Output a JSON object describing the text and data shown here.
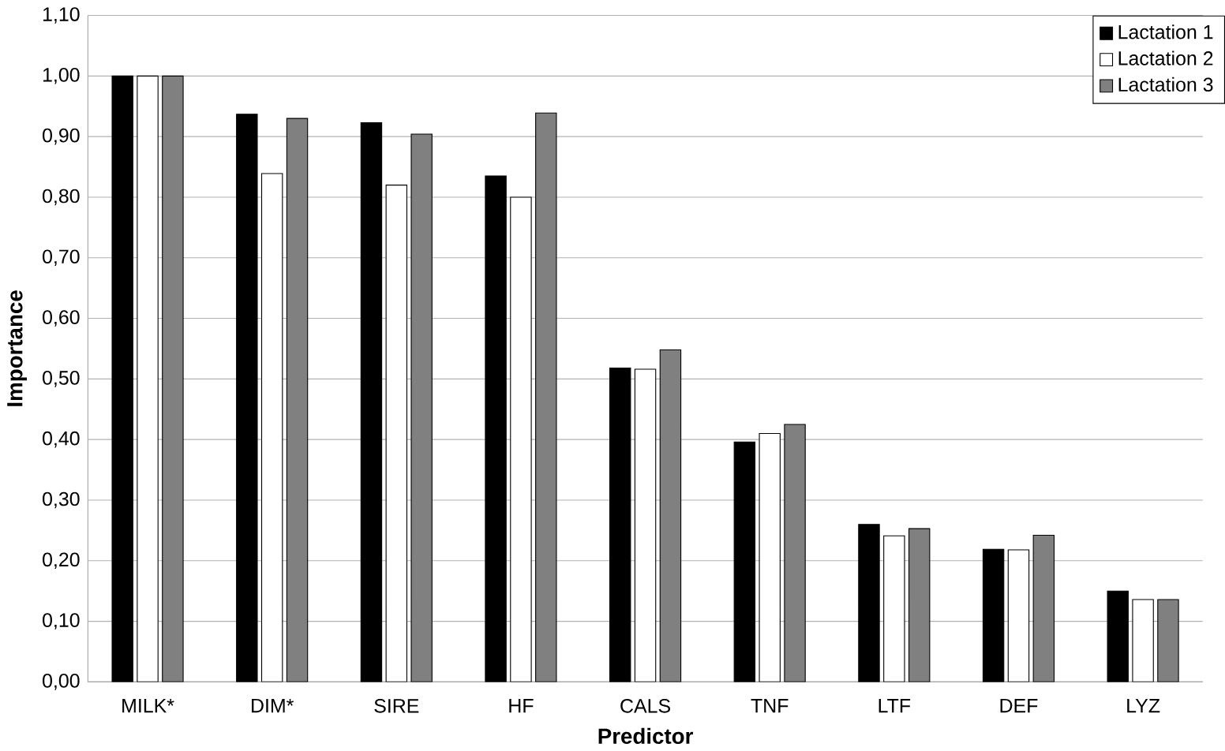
{
  "chart_data": {
    "type": "bar",
    "xlabel": "Predictor",
    "ylabel": "Importance",
    "categories": [
      "MILK*",
      "DIM*",
      "SIRE",
      "HF",
      "CALS",
      "TNF",
      "LTF",
      "DEF",
      "LYZ"
    ],
    "series": [
      {
        "name": "Lactation 1",
        "color": "#000000",
        "values": [
          1.0,
          0.937,
          0.923,
          0.835,
          0.518,
          0.396,
          0.26,
          0.219,
          0.15
        ]
      },
      {
        "name": "Lactation 2",
        "color": "#ffffff",
        "values": [
          1.0,
          0.839,
          0.82,
          0.8,
          0.516,
          0.41,
          0.241,
          0.218,
          0.136
        ]
      },
      {
        "name": "Lactation 3",
        "color": "#808080",
        "values": [
          1.0,
          0.93,
          0.904,
          0.939,
          0.548,
          0.425,
          0.253,
          0.242,
          0.136
        ]
      }
    ],
    "ylim": [
      0,
      1.1
    ],
    "yticks": [
      {
        "value": 0,
        "label": "0,00"
      },
      {
        "value": 0.1,
        "label": "0,10"
      },
      {
        "value": 0.2,
        "label": "0,20"
      },
      {
        "value": 0.3,
        "label": "0,30"
      },
      {
        "value": 0.4,
        "label": "0,40"
      },
      {
        "value": 0.5,
        "label": "0,50"
      },
      {
        "value": 0.6,
        "label": "0,60"
      },
      {
        "value": 0.7,
        "label": "0,70"
      },
      {
        "value": 0.8,
        "label": "0,80"
      },
      {
        "value": 0.9,
        "label": "0,90"
      },
      {
        "value": 1.0,
        "label": "1,00"
      },
      {
        "value": 1.1,
        "label": "1,10"
      }
    ],
    "grid": "y",
    "legend": "top right"
  }
}
